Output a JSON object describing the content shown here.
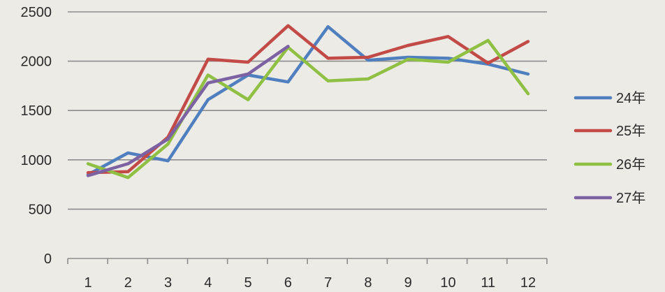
{
  "chart_data": {
    "type": "line",
    "title": "",
    "xlabel": "",
    "ylabel": "",
    "ylim": [
      0,
      2500
    ],
    "yticks": [
      0,
      500,
      1000,
      1500,
      2000,
      2500
    ],
    "categories": [
      "1",
      "2",
      "3",
      "4",
      "5",
      "6",
      "7",
      "8",
      "9",
      "10",
      "11",
      "12"
    ],
    "grid": true,
    "legend_position": "right",
    "series": [
      {
        "name": "24年",
        "color": "#4f7fbf",
        "values": [
          850,
          1070,
          990,
          1610,
          1860,
          1790,
          2350,
          2010,
          2040,
          2030,
          1970,
          1870
        ]
      },
      {
        "name": "25年",
        "color": "#c24a47",
        "values": [
          870,
          880,
          1230,
          2020,
          1990,
          2360,
          2030,
          2040,
          2160,
          2250,
          1980,
          2200
        ]
      },
      {
        "name": "26年",
        "color": "#8fc044",
        "values": [
          960,
          820,
          1160,
          1860,
          1610,
          2140,
          1800,
          1820,
          2020,
          1990,
          2210,
          1670
        ]
      },
      {
        "name": "27年",
        "color": "#7d62a3",
        "values": [
          840,
          960,
          1210,
          1780,
          1870,
          2150,
          null,
          null,
          null,
          null,
          null,
          null
        ]
      }
    ]
  }
}
